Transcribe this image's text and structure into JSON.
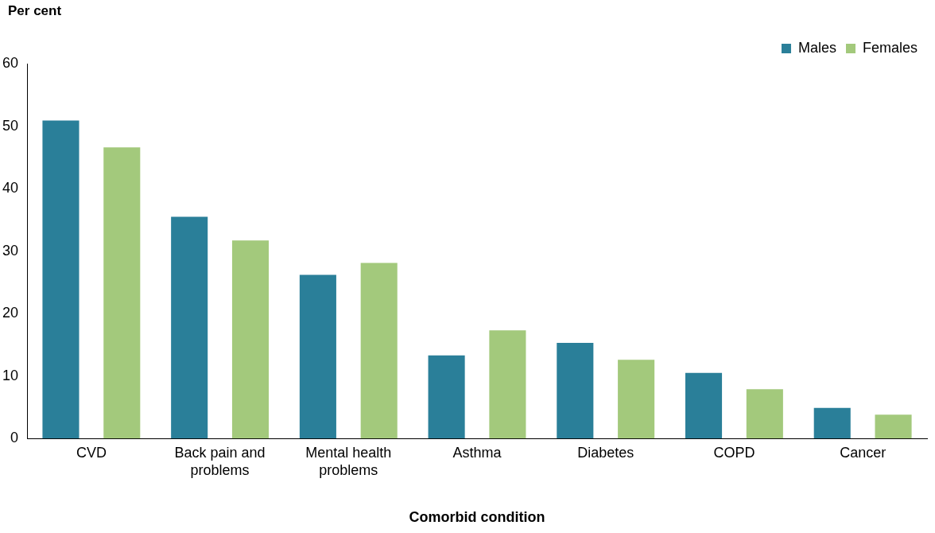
{
  "chart_data": {
    "type": "bar",
    "ylabel": "Per cent",
    "xlabel": "Comorbid condition",
    "categories": [
      "CVD",
      "Back pain and problems",
      "Mental health problems",
      "Asthma",
      "Diabetes",
      "COPD",
      "Cancer"
    ],
    "series": [
      {
        "name": "Males",
        "color": "#2a7f99",
        "values": [
          50.9,
          35.5,
          26.2,
          13.3,
          15.3,
          10.5,
          4.9
        ]
      },
      {
        "name": "Females",
        "color": "#a3c97c",
        "values": [
          46.6,
          31.7,
          28.1,
          17.3,
          12.6,
          7.9,
          3.8
        ]
      }
    ],
    "ylim": [
      0,
      60
    ],
    "yticks": [
      0,
      10,
      20,
      30,
      40,
      50,
      60
    ],
    "grid": false,
    "legend": "top right"
  }
}
